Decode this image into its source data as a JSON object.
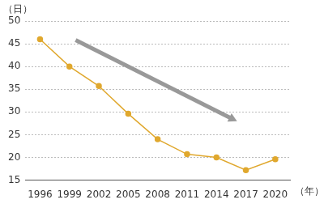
{
  "chart_data": {
    "type": "line",
    "ylabel": "（日）",
    "xlabel": "（年）",
    "categories": [
      "1996",
      "1999",
      "2002",
      "2005",
      "2008",
      "2011",
      "2014",
      "2017",
      "2020"
    ],
    "values": [
      46,
      40,
      35.7,
      29.6,
      24,
      20.7,
      20,
      17.2,
      19.6
    ],
    "color": "#e0a82e",
    "marker": "circle",
    "ylim": [
      15,
      50
    ],
    "yticks": [
      15,
      20,
      25,
      30,
      35,
      40,
      45,
      50
    ],
    "grid": true
  }
}
